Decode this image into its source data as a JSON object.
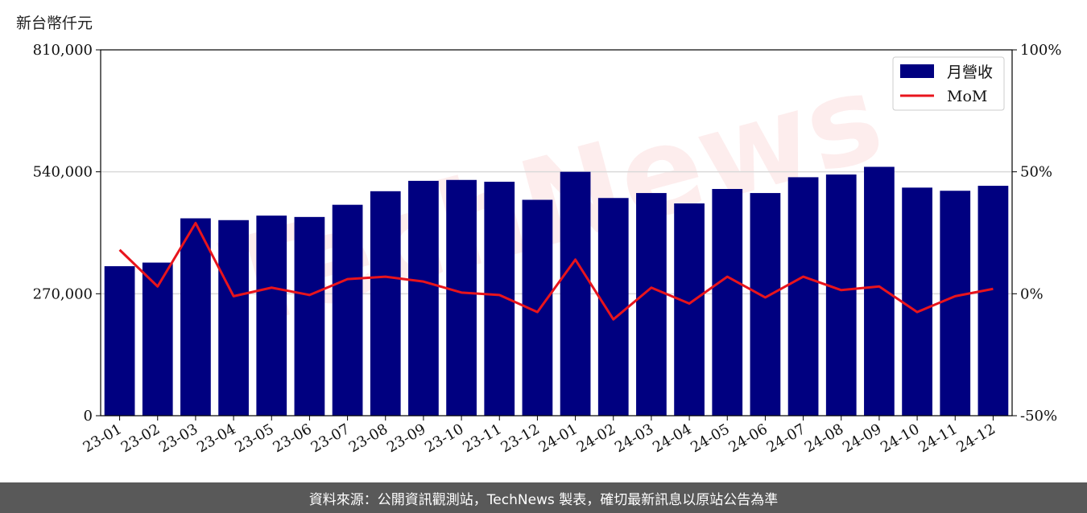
{
  "unit_label": "新台幣仟元",
  "footer_text": "資料來源：公開資訊觀測站，TechNews 製表，確切最新訊息以原站公告為準",
  "watermark": "TechNews",
  "colors": {
    "bar": "#000080",
    "line": "#e8141c",
    "grid": "#d9d9d9",
    "footer_bg": "#595959"
  },
  "chart_data": {
    "type": "bar",
    "categories": [
      "23-01",
      "23-02",
      "23-03",
      "23-04",
      "23-05",
      "23-06",
      "23-07",
      "23-08",
      "23-09",
      "23-10",
      "23-11",
      "23-12",
      "24-01",
      "24-02",
      "24-03",
      "24-04",
      "24-05",
      "24-06",
      "24-07",
      "24-08",
      "24-09",
      "24-10",
      "24-11",
      "24-12"
    ],
    "series": [
      {
        "name": "月營收",
        "type": "bar",
        "axis": "left",
        "values": [
          331000,
          339000,
          437000,
          433000,
          443000,
          440000,
          467000,
          497000,
          520000,
          522000,
          518000,
          478000,
          540000,
          482000,
          493000,
          470000,
          502000,
          493000,
          528000,
          534000,
          551000,
          505000,
          498000,
          509000
        ]
      },
      {
        "name": "MoM",
        "type": "line",
        "axis": "right",
        "values": [
          18,
          3,
          29,
          -1,
          2.5,
          -0.5,
          6,
          7,
          5,
          0.5,
          -0.5,
          -7.5,
          14,
          -10.5,
          2.5,
          -4,
          7,
          -1.5,
          7,
          1.5,
          3,
          -7.5,
          -1,
          2
        ]
      }
    ],
    "y_left": {
      "min": 0,
      "max": 810000,
      "ticks": [
        0,
        270000,
        540000,
        810000
      ],
      "tick_labels": [
        "0",
        "270,000",
        "540,000",
        "810,000"
      ]
    },
    "y_right": {
      "min": -50,
      "max": 100,
      "ticks": [
        -50,
        0,
        50,
        100
      ],
      "tick_labels": [
        "-50%",
        "0%",
        "50%",
        "100%"
      ]
    },
    "grid": "horizontal",
    "legend": "top-right"
  }
}
